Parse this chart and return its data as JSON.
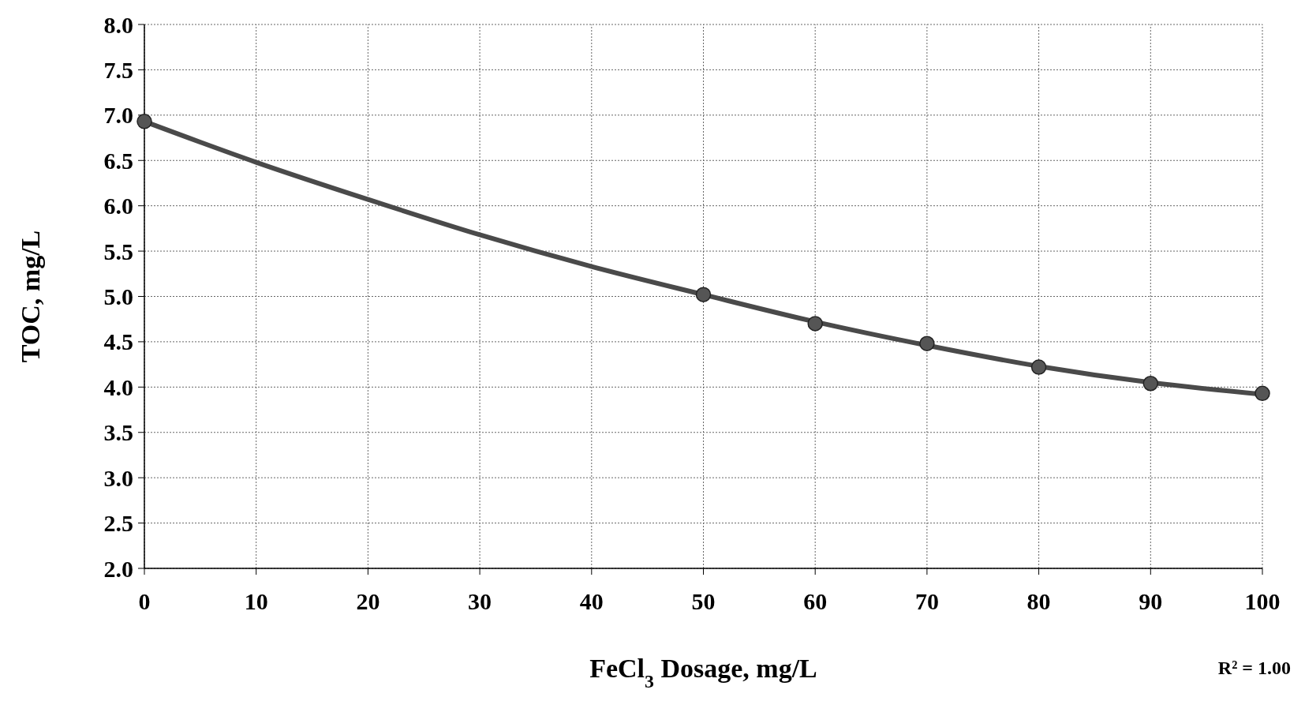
{
  "chart_data": {
    "type": "scatter",
    "xlabel": "FeCl$_{3}$ Dosage, mg/L",
    "ylabel": "TOC, mg/L",
    "xlim": [
      0,
      100
    ],
    "xticks": [
      0,
      10,
      20,
      30,
      40,
      50,
      60,
      70,
      80,
      90,
      100
    ],
    "ylim": [
      2.0,
      8.0
    ],
    "yticks": [
      {
        "value": 2,
        "label": "2.0"
      },
      {
        "value": 2.5,
        "label": "2.5"
      },
      {
        "value": 3,
        "label": "3.0"
      },
      {
        "value": 3.5,
        "label": "3.5"
      },
      {
        "value": 4,
        "label": "4.0"
      },
      {
        "value": 4.5,
        "label": "4.5"
      },
      {
        "value": 5,
        "label": "5.0"
      },
      {
        "value": 5.5,
        "label": "5.5"
      },
      {
        "value": 6,
        "label": "6.0"
      },
      {
        "value": 6.5,
        "label": "6.5"
      },
      {
        "value": 7,
        "label": "7.0"
      },
      {
        "value": 7.5,
        "label": "7.5"
      },
      {
        "value": 8,
        "label": "8.0"
      }
    ],
    "grid": true,
    "series": [
      {
        "type": "line",
        "marker": "none",
        "color": "#4a4a4a",
        "x": [
          0,
          10,
          20,
          30,
          40,
          50,
          60,
          70,
          80,
          90,
          100
        ],
        "values": [
          6.93,
          6.48,
          6.07,
          5.68,
          5.33,
          5.02,
          4.72,
          4.46,
          4.23,
          4.05,
          3.92
        ]
      },
      {
        "marker": "circle",
        "color": "#555555",
        "x": [
          0,
          50,
          60,
          70,
          80,
          90,
          100
        ],
        "values": [
          6.93,
          5.02,
          4.7,
          4.48,
          4.22,
          4.04,
          3.93
        ]
      }
    ],
    "annotations": [
      "R² = 1.00"
    ]
  }
}
